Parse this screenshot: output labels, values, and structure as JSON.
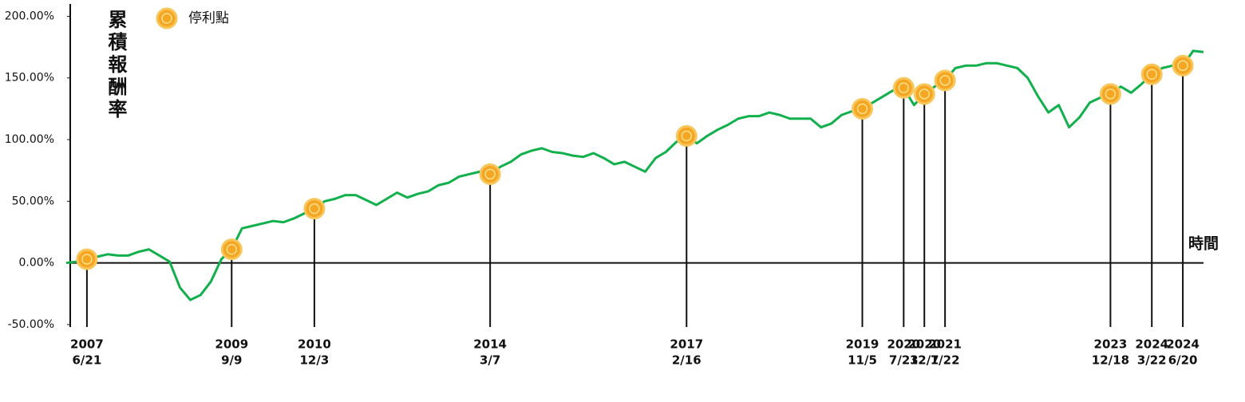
{
  "chart_data": {
    "type": "line",
    "y_label": "累積報酬率",
    "x_label": "時間",
    "marker_legend": "停利點",
    "marker_color": "#f5a623",
    "ylim": [
      -52,
      210
    ],
    "yticks": [
      {
        "value": -50,
        "label": "-50.00%"
      },
      {
        "value": 0,
        "label": "0.00%"
      },
      {
        "value": 50,
        "label": "50.00%"
      },
      {
        "value": 100,
        "label": "100.00%"
      },
      {
        "value": 150,
        "label": "150.00%"
      },
      {
        "value": 200,
        "label": "200.00%"
      }
    ],
    "grid": false,
    "categories": [
      null,
      null,
      {
        "year": "2007",
        "date": "6/21"
      },
      null,
      null,
      null,
      null,
      null,
      null,
      null,
      null,
      null,
      null,
      null,
      null,
      null,
      {
        "year": "2009",
        "date": "9/9"
      },
      null,
      null,
      null,
      null,
      null,
      null,
      null,
      {
        "year": "2010",
        "date": "12/3"
      },
      null,
      null,
      null,
      null,
      null,
      null,
      null,
      null,
      null,
      null,
      null,
      null,
      null,
      null,
      null,
      null,
      {
        "year": "2014",
        "date": "3/7"
      },
      null,
      null,
      null,
      null,
      null,
      null,
      null,
      null,
      null,
      null,
      null,
      null,
      null,
      null,
      null,
      null,
      null,
      null,
      {
        "year": "2017",
        "date": "2/16"
      },
      null,
      null,
      null,
      null,
      null,
      null,
      null,
      null,
      null,
      null,
      null,
      null,
      null,
      null,
      null,
      null,
      {
        "year": "2019",
        "date": "11/5"
      },
      null,
      null,
      null,
      {
        "year": "2020",
        "date": "7/23"
      },
      null,
      {
        "year": "2020",
        "date": "12/7"
      },
      null,
      {
        "year": "2021",
        "date": "1/22"
      },
      null,
      null,
      null,
      null,
      null,
      null,
      null,
      null,
      null,
      null,
      null,
      null,
      null,
      null,
      null,
      {
        "year": "2023",
        "date": "12/18"
      },
      null,
      null,
      null,
      {
        "year": "2024",
        "date": "3/22"
      },
      null,
      null,
      {
        "year": "2024",
        "date": "6/20"
      },
      null,
      null
    ],
    "series": [
      {
        "color": "#12b04c",
        "values": [
          0,
          1,
          3,
          5,
          7,
          6,
          6,
          9,
          11,
          6,
          1,
          -20,
          -30,
          -26,
          -15,
          3,
          11,
          28,
          30,
          32,
          34,
          33,
          36,
          40,
          44,
          50,
          52,
          55,
          55,
          51,
          47,
          52,
          57,
          53,
          56,
          58,
          63,
          65,
          70,
          72,
          74,
          72,
          78,
          82,
          88,
          91,
          93,
          90,
          89,
          87,
          86,
          89,
          85,
          80,
          82,
          78,
          74,
          85,
          90,
          98,
          103,
          97,
          103,
          108,
          112,
          117,
          119,
          119,
          122,
          120,
          117,
          117,
          117,
          110,
          113,
          120,
          123,
          125,
          130,
          135,
          140,
          142,
          128,
          137,
          143,
          148,
          158,
          160,
          160,
          162,
          162,
          160,
          158,
          150,
          135,
          122,
          128,
          110,
          118,
          130,
          134,
          137,
          143,
          138,
          145,
          153,
          158,
          160,
          160,
          172,
          171
        ]
      }
    ]
  }
}
